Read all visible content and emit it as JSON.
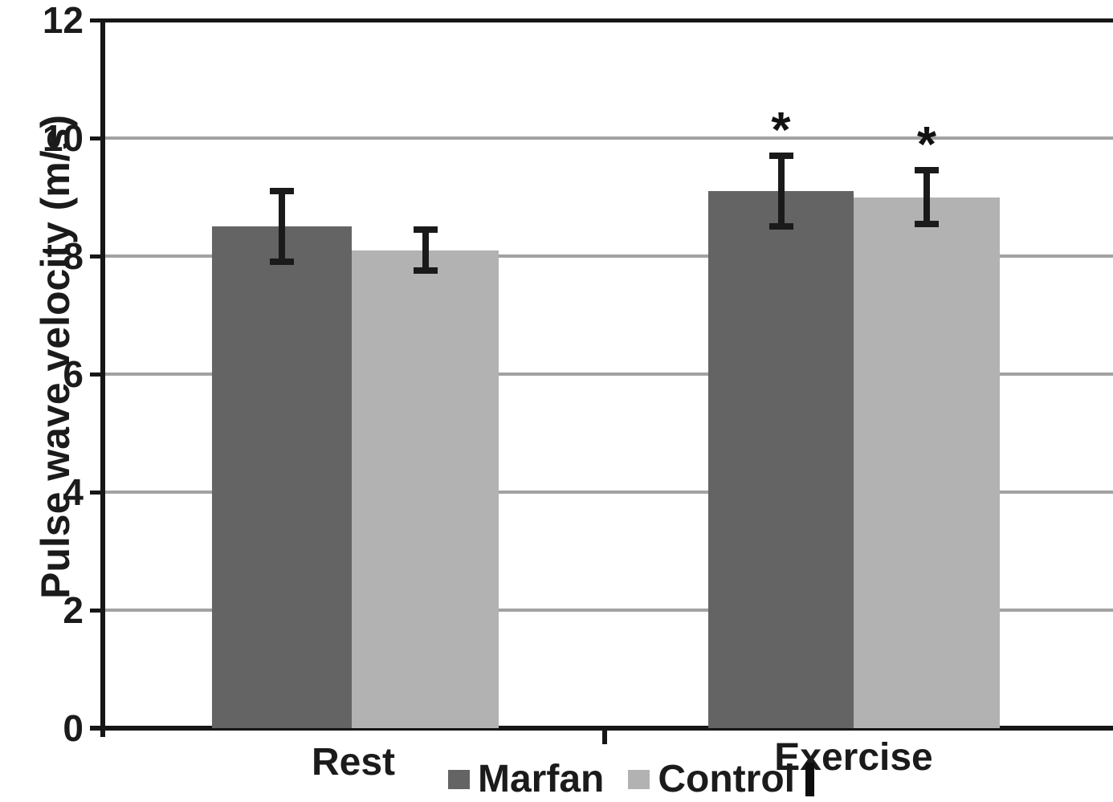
{
  "figure": {
    "kind": "scientific-bar-chart"
  },
  "chart_data": {
    "type": "bar",
    "title": "",
    "xlabel": "",
    "ylabel": "Pulse wave velocity (m/s)",
    "categories": [
      "Rest",
      "Exercise"
    ],
    "series": [
      {
        "name": "Marfan",
        "color": "#646464",
        "values": [
          8.5,
          9.1
        ],
        "errors": [
          0.6,
          0.6
        ]
      },
      {
        "name": "Control",
        "color": "#b2b2b2",
        "values": [
          8.1,
          9.0
        ],
        "errors": [
          0.35,
          0.45
        ]
      }
    ],
    "ylim": [
      0,
      12
    ],
    "yticks": [
      0,
      2,
      4,
      6,
      8,
      10,
      12
    ],
    "grid": true,
    "gridline_color": "#a2a2a2",
    "axis_color": "#161616",
    "error_bar_color": "#1a1a1a",
    "legend_position": "bottom-center",
    "significance": [
      {
        "category": "Exercise",
        "series": "Marfan",
        "symbol": "*"
      },
      {
        "category": "Exercise",
        "series": "Control",
        "symbol": "*"
      }
    ]
  }
}
